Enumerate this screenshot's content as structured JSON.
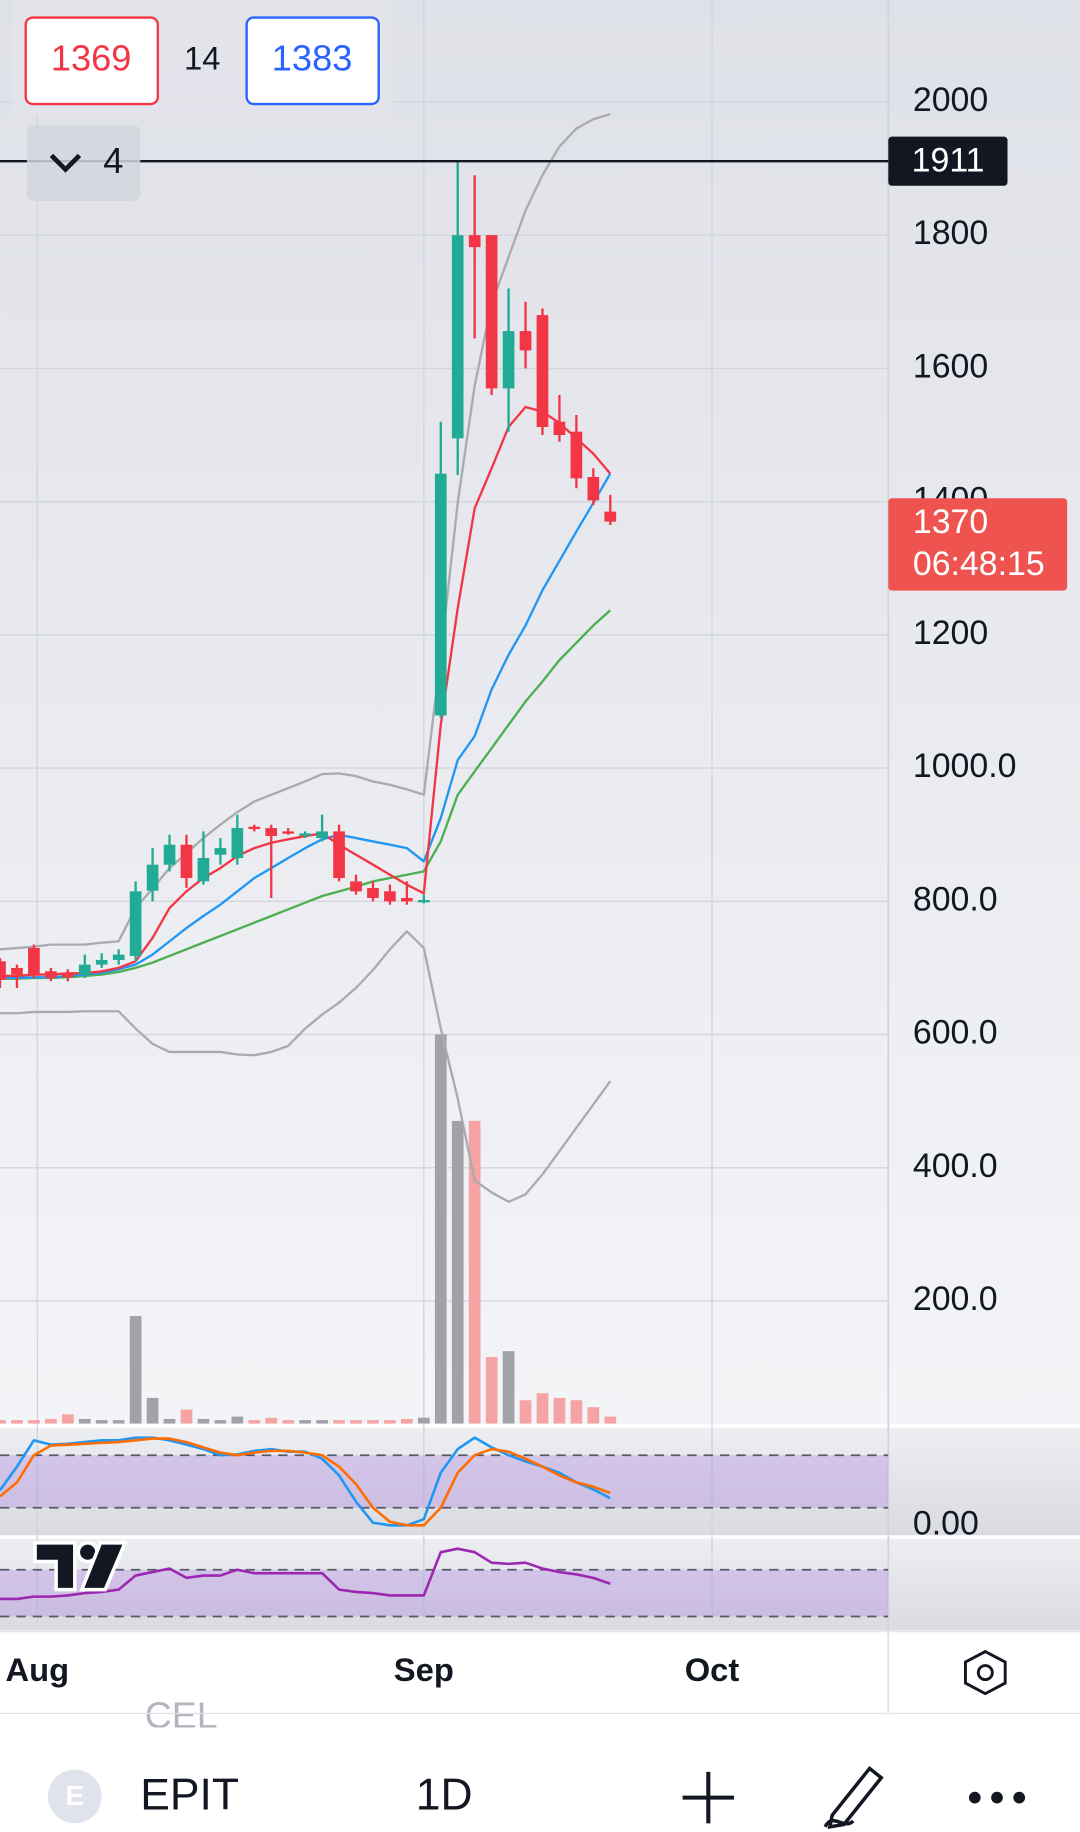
{
  "chart_data": {
    "type": "candlestick",
    "x": [
      0,
      1,
      2,
      3,
      4,
      5,
      6,
      7,
      8,
      9,
      10,
      11,
      12,
      13,
      14,
      15,
      16,
      17,
      18,
      19,
      20,
      21,
      22,
      23,
      24,
      25,
      26,
      27,
      28,
      29,
      30,
      31,
      32,
      33,
      34,
      35,
      36
    ],
    "xlim": [
      0,
      52.4
    ],
    "xticks": [
      {
        "value": 2.2,
        "label": "Aug"
      },
      {
        "value": 25,
        "label": "Sep"
      },
      {
        "value": 42,
        "label": "Oct"
      }
    ],
    "open": [
      710,
      700,
      730,
      695,
      692,
      690,
      705,
      712,
      718,
      816,
      855,
      885,
      830,
      870,
      865,
      912,
      910,
      905,
      900,
      895,
      905,
      830,
      820,
      815,
      805,
      800,
      1079,
      1495,
      1800,
      1800,
      1570,
      1656,
      1680,
      1520,
      1505,
      1437,
      1385
    ],
    "high": [
      715,
      705,
      735,
      700,
      698,
      720,
      722,
      728,
      830,
      880,
      900,
      900,
      905,
      895,
      930,
      915,
      915,
      910,
      905,
      930,
      915,
      840,
      830,
      825,
      830,
      810,
      1520,
      1911,
      1890,
      1800,
      1720,
      1700,
      1690,
      1560,
      1530,
      1450,
      1410
    ],
    "low": [
      670,
      670,
      685,
      680,
      680,
      685,
      700,
      705,
      710,
      800,
      845,
      820,
      825,
      855,
      855,
      905,
      805,
      900,
      895,
      890,
      830,
      810,
      800,
      795,
      795,
      797,
      1075,
      1440,
      1645,
      1560,
      1505,
      1600,
      1500,
      1490,
      1420,
      1395,
      1365
    ],
    "close": [
      682,
      690,
      690,
      685,
      686,
      705,
      712,
      720,
      815,
      855,
      885,
      835,
      865,
      880,
      910,
      910,
      898,
      903,
      902,
      905,
      835,
      815,
      805,
      800,
      800,
      802,
      1442,
      1800,
      1782,
      1570,
      1656,
      1627,
      1512,
      1500,
      1435,
      1402,
      1370
    ],
    "up_color": "#22ab94",
    "down_color": "#f23645",
    "ylim": [
      16,
      2153
    ],
    "yticks": [
      2000,
      1800,
      1600,
      1400,
      1200,
      {
        "value": 1000,
        "label": "1000.0"
      },
      {
        "value": 800,
        "label": "800.0"
      },
      {
        "value": 600,
        "label": "600.0"
      },
      {
        "value": 400,
        "label": "400.0"
      },
      {
        "value": 200,
        "label": "200.0"
      }
    ],
    "grid": true,
    "lines": [
      {
        "color": "#a9abb0",
        "values": [
          728,
          730,
          732,
          735,
          735,
          735,
          738,
          740,
          790,
          819,
          850,
          872,
          895,
          915,
          934,
          950,
          960,
          970,
          980,
          991,
          992,
          988,
          980,
          975,
          968,
          960,
          1170,
          1398,
          1574,
          1697,
          1767,
          1837,
          1890,
          1933,
          1960,
          1974,
          1982
        ]
      },
      {
        "color": "#a9abb0",
        "values": [
          632,
          632,
          634,
          634,
          634,
          635,
          635,
          635,
          609,
          586,
          574,
          574,
          574,
          574,
          570,
          569,
          574,
          583,
          609,
          630,
          648,
          670,
          697,
          728,
          755,
          730,
          609,
          504,
          381,
          363,
          349,
          360,
          390,
          425,
          460,
          495,
          530
        ]
      },
      {
        "color": "#4caf50",
        "values": [
          684,
          684,
          685,
          685,
          686,
          688,
          690,
          694,
          700,
          708,
          718,
          728,
          738,
          748,
          758,
          768,
          778,
          788,
          798,
          808,
          815,
          822,
          830,
          835,
          840,
          845,
          890,
          960,
          995,
          1030,
          1065,
          1100,
          1130,
          1162,
          1188,
          1214,
          1237
        ]
      },
      {
        "color": "#2196f3",
        "values": [
          685,
          685,
          686,
          686,
          688,
          690,
          693,
          698,
          705,
          720,
          740,
          760,
          778,
          795,
          815,
          835,
          850,
          865,
          880,
          893,
          900,
          895,
          890,
          885,
          880,
          860,
          925,
          1012,
          1048,
          1118,
          1170,
          1214,
          1267,
          1311,
          1355,
          1398,
          1442
        ]
      },
      {
        "color": "#f23645",
        "values": [
          688,
          688,
          690,
          690,
          692,
          692,
          695,
          700,
          710,
          745,
          790,
          815,
          835,
          850,
          868,
          880,
          888,
          893,
          898,
          902,
          885,
          870,
          855,
          840,
          825,
          812,
          1065,
          1240,
          1390,
          1450,
          1512,
          1542,
          1535,
          1518,
          1495,
          1472,
          1442
        ]
      }
    ],
    "volume": [
      3,
      3,
      3,
      4,
      8,
      4,
      3,
      3,
      92,
      22,
      4,
      12,
      4,
      3,
      6,
      3,
      5,
      3,
      3,
      3,
      3,
      3,
      3,
      3,
      4,
      5,
      333,
      259,
      259,
      57,
      62,
      20,
      26,
      22,
      20,
      14,
      6
    ],
    "vlim": [
      0,
      1218
    ],
    "volume_up_color": "#a0a2a8",
    "volume_down_color": "#f5a3a3",
    "hline": 1911,
    "last_price": 1370,
    "countdown": "06:48:15",
    "stochastic": {
      "ylim": [
        -9.3,
        110.7
      ],
      "yticks": [
        {
          "value": 0,
          "label": "0.00"
        }
      ],
      "bands": [
        20,
        80
      ],
      "series": [
        {
          "color": "#2196f3",
          "values": [
            40,
            67,
            97,
            92,
            93,
            95,
            97,
            97,
            100,
            100,
            97,
            92,
            87,
            80,
            81,
            85,
            87,
            84,
            84,
            76,
            57,
            27,
            3,
            0,
            0,
            7,
            60,
            87,
            100,
            89,
            80,
            73,
            67,
            60,
            49,
            41,
            31
          ]
        },
        {
          "color": "#ff6d00",
          "values": [
            33,
            49,
            80,
            91,
            92,
            93,
            94,
            95,
            97,
            99,
            99,
            95,
            89,
            83,
            80,
            83,
            85,
            85,
            83,
            80,
            67,
            47,
            20,
            4,
            0,
            0,
            20,
            60,
            80,
            87,
            84,
            76,
            67,
            57,
            49,
            44,
            37
          ]
        }
      ]
    },
    "rsi": {
      "ylim": [
        21,
        97
      ],
      "bands": [
        30,
        70
      ],
      "series": [
        {
          "color": "#9c27b0",
          "values": [
            45,
            45,
            47,
            47,
            48,
            50,
            51,
            53,
            65,
            68,
            71,
            63,
            65,
            65,
            70,
            67,
            67,
            67,
            67,
            67,
            53,
            51,
            50,
            48,
            48,
            48,
            85,
            88,
            85,
            76,
            75,
            76,
            71,
            68,
            66,
            63,
            58
          ]
        }
      ]
    }
  },
  "ui": {
    "bid": 1369,
    "spread": 14,
    "ask": 1383,
    "indicator_count": 4,
    "symbol_letter": "E",
    "symbol": "EPIT",
    "interval": "1D",
    "hidden_text": "CEL"
  }
}
